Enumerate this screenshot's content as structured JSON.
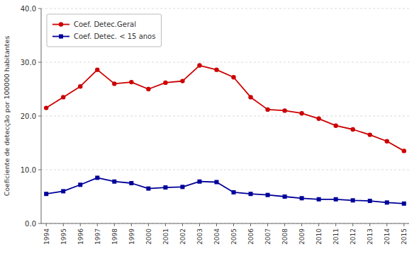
{
  "chart_data": {
    "type": "line",
    "y_label": "Coeficiente de detecção por 100000 habitantes",
    "x": [
      1994,
      1995,
      1996,
      1997,
      1998,
      1999,
      2000,
      2001,
      2002,
      2003,
      2004,
      2005,
      2006,
      2007,
      2008,
      2009,
      2010,
      2011,
      2012,
      2013,
      2014,
      2015
    ],
    "series": [
      {
        "name": "Coef. Detec.Geral",
        "color": "#cc0000",
        "marker": "circle",
        "values": [
          21.5,
          23.5,
          25.5,
          28.6,
          26.0,
          26.3,
          25.0,
          26.2,
          26.5,
          29.4,
          28.6,
          27.2,
          23.5,
          21.2,
          21.0,
          20.5,
          19.5,
          18.2,
          17.5,
          16.5,
          15.3,
          13.5
        ]
      },
      {
        "name": "Coef. Detec. < 15 anos",
        "color": "#000099",
        "marker": "square",
        "values": [
          5.5,
          6.0,
          7.2,
          8.5,
          7.8,
          7.5,
          6.5,
          6.7,
          6.8,
          7.8,
          7.7,
          5.8,
          5.5,
          5.3,
          5.0,
          4.7,
          4.5,
          4.5,
          4.3,
          4.2,
          3.9,
          3.7
        ]
      }
    ],
    "xlim": [
      1993.7,
      2015.3
    ],
    "xticks": [
      1994,
      1995,
      1996,
      1997,
      1998,
      1999,
      2000,
      2001,
      2002,
      2003,
      2004,
      2005,
      2006,
      2007,
      2008,
      2009,
      2010,
      2011,
      2012,
      2013,
      2014,
      2015
    ],
    "ylim": [
      0.0,
      40.0
    ],
    "yticks": [
      {
        "value": 0.0,
        "label": "0.0"
      },
      {
        "value": 10.0,
        "label": "10.0"
      },
      {
        "value": 20.0,
        "label": "20.0"
      },
      {
        "value": 30.0,
        "label": "30.0"
      },
      {
        "value": 40.0,
        "label": "40.0"
      }
    ],
    "grid": true,
    "legend": "upper left"
  }
}
